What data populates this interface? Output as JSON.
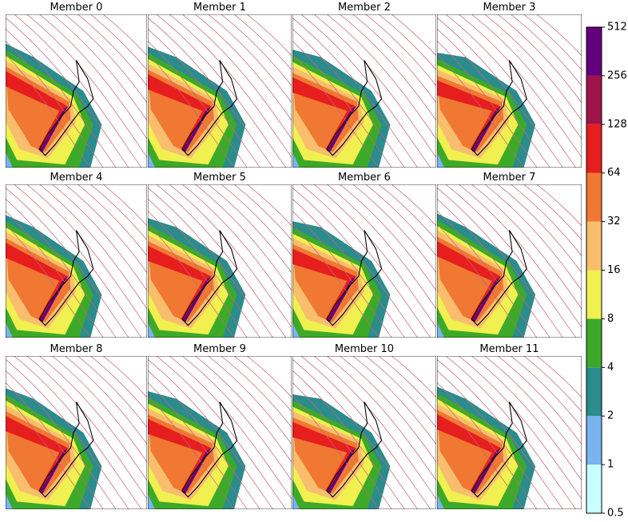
{
  "panels": [
    {
      "title": "Member 0"
    },
    {
      "title": "Member 1"
    },
    {
      "title": "Member 2"
    },
    {
      "title": "Member 3"
    },
    {
      "title": "Member 4"
    },
    {
      "title": "Member 5"
    },
    {
      "title": "Member 6"
    },
    {
      "title": "Member 7"
    },
    {
      "title": "Member 8"
    },
    {
      "title": "Member 9"
    },
    {
      "title": "Member 10"
    },
    {
      "title": "Member 11"
    }
  ],
  "colorbar": {
    "ticks": [
      0.5,
      1,
      2,
      4,
      8,
      16,
      32,
      64,
      128,
      256,
      512
    ],
    "colors": [
      "#c8ffff",
      "#78b4f0",
      "#2a8c8c",
      "#3caa28",
      "#f0f050",
      "#f8be6e",
      "#f07832",
      "#e61e1e",
      "#a0144b",
      "#64007d"
    ],
    "log_scale": true
  }
}
